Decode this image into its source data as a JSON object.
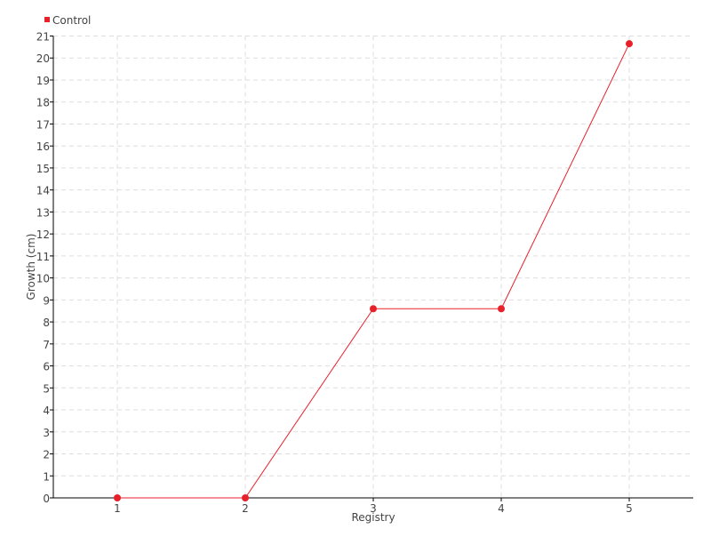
{
  "chart_data": {
    "type": "line",
    "title": "",
    "xlabel": "Registry",
    "ylabel": "Growth (cm)",
    "x": [
      1,
      2,
      3,
      4,
      5
    ],
    "series": [
      {
        "name": "Control",
        "color": "#e8202a",
        "values": [
          0,
          0,
          8.6,
          8.6,
          20.65
        ]
      }
    ],
    "xlim": [
      0.5,
      5.5
    ],
    "ylim": [
      0,
      21
    ],
    "xticks": [
      "1",
      "2",
      "3",
      "4",
      "5"
    ],
    "yticks": [
      "0",
      "1",
      "2",
      "3",
      "4",
      "5",
      "6",
      "7",
      "8",
      "9",
      "10",
      "11",
      "12",
      "13",
      "14",
      "15",
      "16",
      "17",
      "18",
      "19",
      "20",
      "21"
    ],
    "grid": true,
    "legend": "top-left"
  }
}
